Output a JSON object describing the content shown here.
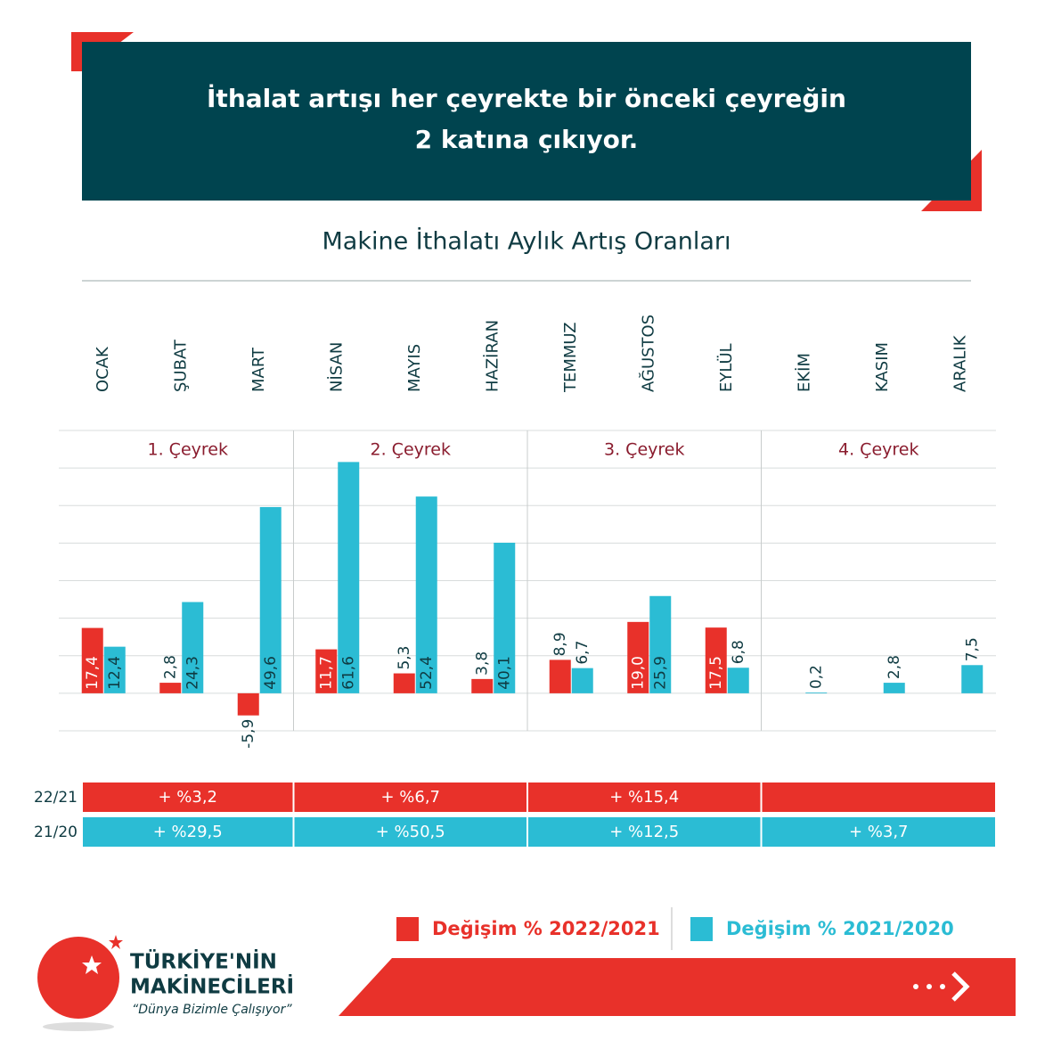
{
  "header": {
    "title_lines": [
      "İthalat artışı her çeyrekte bir önceki çeyreğin",
      "2 katına çıkıyor."
    ]
  },
  "chart_data": {
    "type": "bar",
    "title": "Makine İthalatı Aylık Artış Oranları",
    "categories": [
      "OCAK",
      "ŞUBAT",
      "MART",
      "NİSAN",
      "MAYIS",
      "HAZİRAN",
      "TEMMUZ",
      "AĞUSTOS",
      "EYLÜL",
      "EKİM",
      "KASIM",
      "ARALIK"
    ],
    "groups": [
      "1. Çeyrek",
      "2. Çeyrek",
      "3. Çeyrek",
      "4. Çeyrek"
    ],
    "series": [
      {
        "name": "Değişim % 2022/2021",
        "color": "#e8312a",
        "values": [
          17.4,
          2.8,
          -5.9,
          11.7,
          5.3,
          3.8,
          8.9,
          19.0,
          17.5,
          null,
          null,
          null
        ],
        "value_labels": [
          "17,4",
          "2,8",
          "-5,9",
          "11,7",
          "5,3",
          "3,8",
          "8,9",
          "19,0",
          "17,5",
          null,
          null,
          null
        ]
      },
      {
        "name": "Değişim % 2021/2020",
        "color": "#2bbcd4",
        "values": [
          12.4,
          24.3,
          49.6,
          61.6,
          52.4,
          40.1,
          6.7,
          25.9,
          6.8,
          0.2,
          2.8,
          7.5
        ],
        "value_labels": [
          "12,4",
          "24,3",
          "49,6",
          "61,6",
          "52,4",
          "40,1",
          "6,7",
          "25,9",
          "6,8",
          "0,2",
          "2,8",
          "7,5"
        ]
      }
    ],
    "ylim": [
      -10,
      70
    ],
    "yticks": [
      -10,
      0,
      10,
      20,
      30,
      40,
      50,
      60,
      70
    ],
    "grid": true,
    "quarter_summary": [
      {
        "label": "22/21",
        "values": [
          "+ %3,2",
          "+ %6,7",
          "+ %15,4",
          null
        ]
      },
      {
        "label": "21/20",
        "values": [
          "+ %29,5",
          "+ %50,5",
          "+ %12,5",
          "+ %3,7"
        ]
      }
    ]
  },
  "footer": {
    "brand_lines": [
      "TÜRKİYE'NİN",
      "MAKİNECİLERİ"
    ],
    "slogan": "“Dünya Bizimle Çalışıyor”"
  }
}
